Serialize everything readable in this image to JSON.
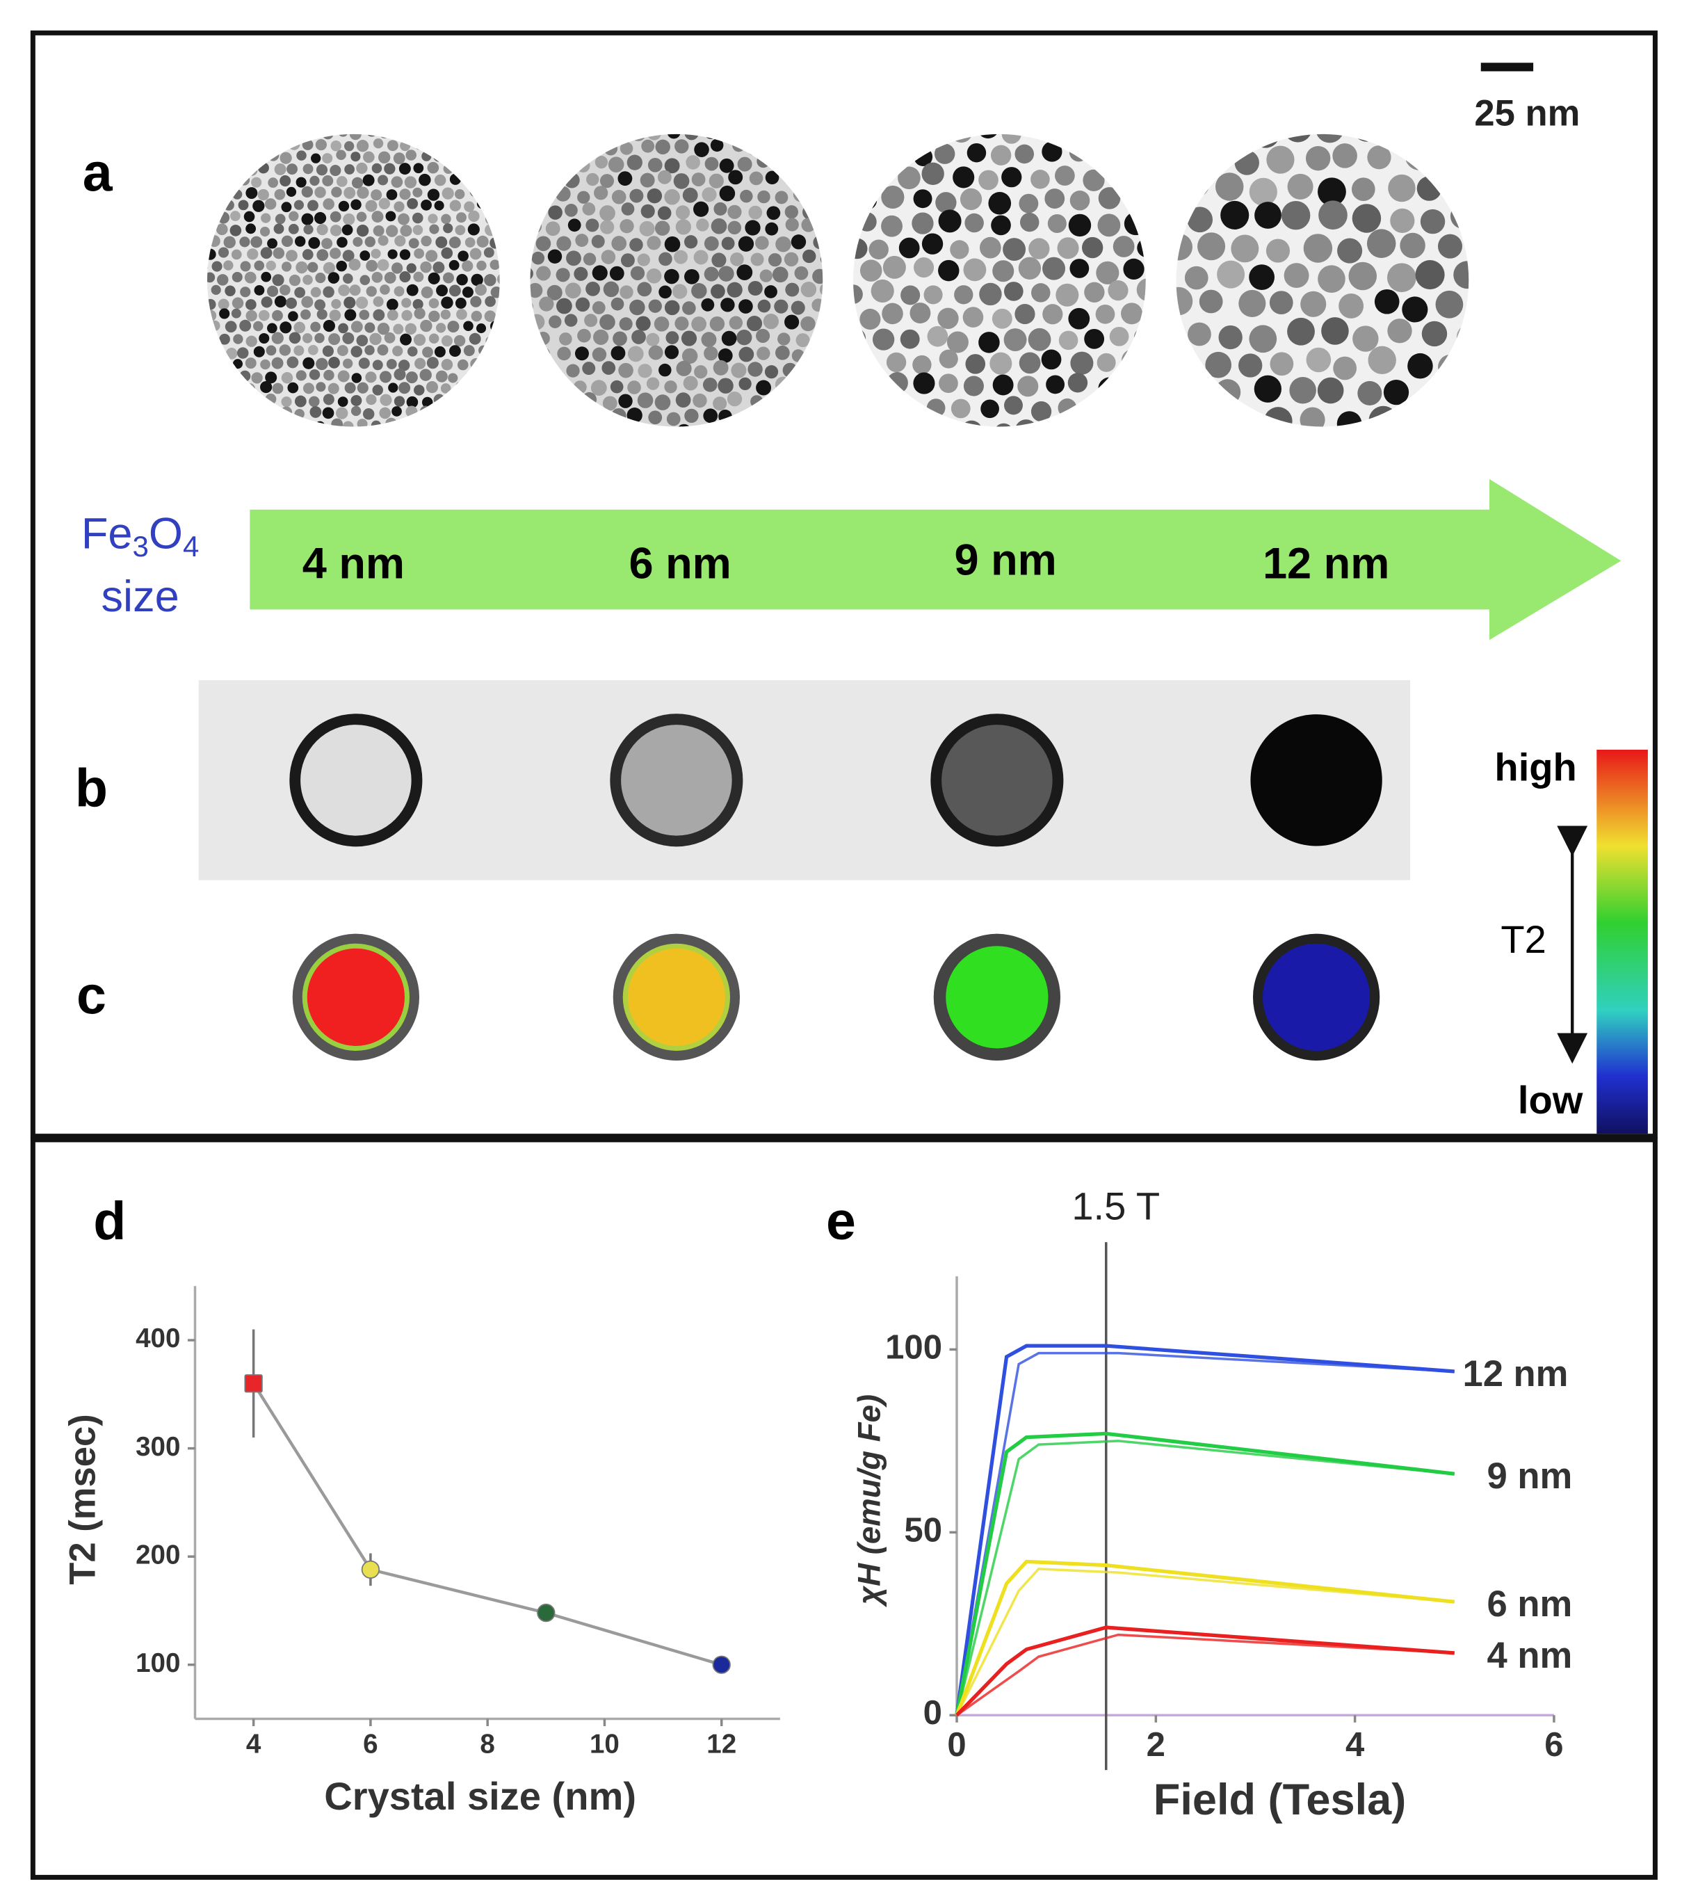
{
  "figure": {
    "panel_labels": [
      "a",
      "b",
      "c",
      "d",
      "e"
    ],
    "scale_bar": "25 nm",
    "size_label": {
      "formula": [
        "Fe",
        "3",
        "O",
        "4"
      ],
      "word": "size"
    },
    "sizes": [
      "4 nm",
      "6 nm",
      "9 nm",
      "12 nm"
    ],
    "colorbar": {
      "high": "high",
      "label": "T2",
      "low": "low"
    }
  },
  "chart_data": [
    {
      "type": "scatter",
      "x_label": "Crystal size (nm)",
      "y_label": "T2 (msec)",
      "x": [
        4,
        6,
        9,
        12
      ],
      "values": [
        360,
        188,
        148,
        100
      ],
      "errors": [
        50,
        15,
        8,
        5
      ],
      "colors": [
        "#e8262a",
        "#e8e050",
        "#2a6a3a",
        "#1a2a9a"
      ],
      "line_color": "#9a9a9a",
      "xlim": [
        3,
        13
      ],
      "ylim": [
        50,
        450
      ],
      "xticks": [
        4,
        6,
        8,
        10,
        12
      ],
      "yticks": [
        100,
        200,
        300,
        400
      ]
    },
    {
      "type": "line",
      "x_label": "Field (Tesla)",
      "y_label": "χH (emu/g Fe)",
      "annotation": {
        "x": 1.5,
        "label": "1.5 T"
      },
      "x": [
        0,
        0.5,
        0.7,
        1.5,
        5
      ],
      "series": [
        {
          "name": "12 nm",
          "color": "#2f4fe0",
          "values": [
            0,
            98,
            101,
            101,
            94
          ]
        },
        {
          "name": "9 nm",
          "color": "#22cc44",
          "values": [
            0,
            72,
            76,
            77,
            66
          ]
        },
        {
          "name": "6 nm",
          "color": "#eee020",
          "values": [
            0,
            36,
            42,
            41,
            31
          ]
        },
        {
          "name": "4 nm",
          "color": "#e82020",
          "values": [
            0,
            14,
            18,
            24,
            17
          ]
        }
      ],
      "xlim": [
        0,
        6
      ],
      "ylim": [
        0,
        120
      ],
      "xticks": [
        0,
        2,
        4,
        6
      ],
      "yticks": [
        0,
        50,
        100
      ]
    }
  ]
}
